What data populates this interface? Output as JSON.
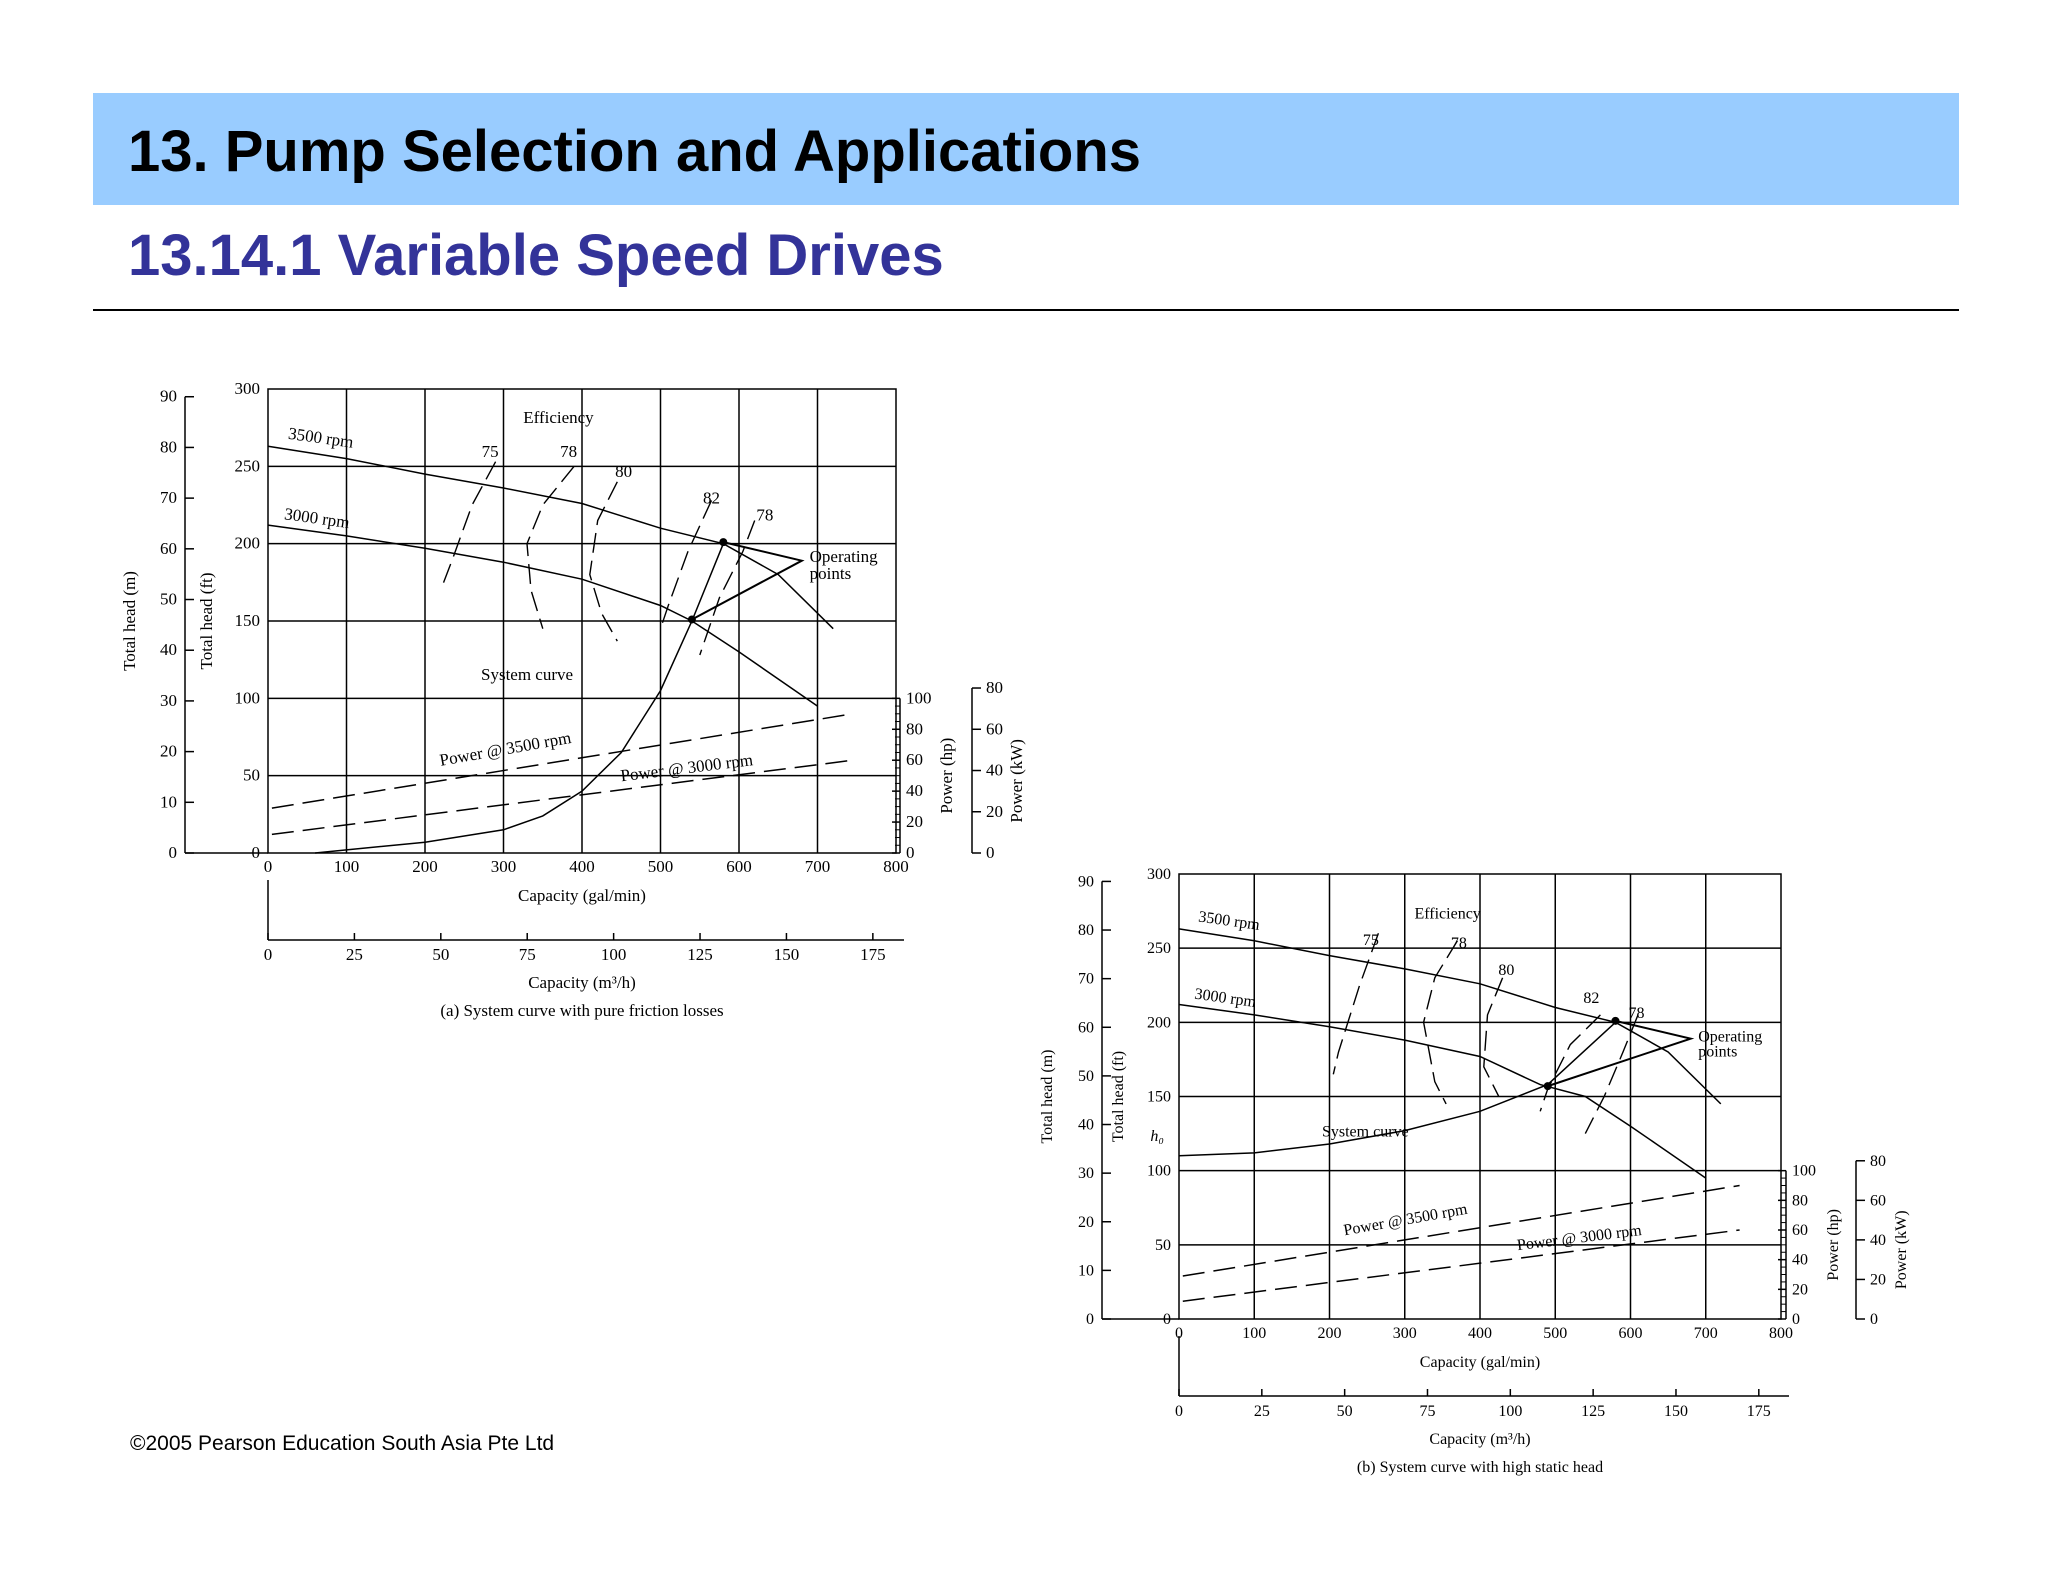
{
  "slide": {
    "title": "13. Pump  Selection and Applications",
    "subtitle": "13.14.1 Variable Speed Drives",
    "copyright": "©2005 Pearson Education South Asia Pte Ltd",
    "colors": {
      "header_band": "#99ccff",
      "subtitle": "#333399"
    }
  },
  "chart_data": [
    {
      "type": "line",
      "caption": "(a) System curve with pure friction losses",
      "xlabel": "Capacity (gal/min)",
      "x2label": "Capacity (m³/h)",
      "ylabel_ft": "Total head (ft)",
      "ylabel_m": "Total head (m)",
      "ylabel_hp": "Power (hp)",
      "ylabel_kw": "Power (kW)",
      "xlim": [
        0,
        800
      ],
      "ylim": [
        0,
        300
      ],
      "x_ticks": [
        "0",
        "100",
        "200",
        "300",
        "400",
        "500",
        "600",
        "700",
        "800"
      ],
      "x2_ticks": [
        "0",
        "25",
        "50",
        "75",
        "100",
        "125",
        "150",
        "175"
      ],
      "y_ft_ticks": [
        "0",
        "50",
        "100",
        "150",
        "200",
        "250",
        "300"
      ],
      "y_m_ticks": [
        "0",
        "10",
        "20",
        "30",
        "40",
        "50",
        "60",
        "70",
        "80",
        "90"
      ],
      "hp_ticks": [
        "0",
        "20",
        "40",
        "60",
        "80",
        "100"
      ],
      "kw_ticks": [
        "0",
        "20",
        "40",
        "60",
        "80"
      ],
      "grid": true,
      "series": [
        {
          "name": "3500 rpm",
          "style": "solid",
          "x": [
            0,
            100,
            200,
            300,
            400,
            500,
            580,
            650,
            720
          ],
          "y": [
            263,
            255,
            245,
            236,
            226,
            210,
            200,
            180,
            145
          ]
        },
        {
          "name": "3000 rpm",
          "style": "solid",
          "x": [
            0,
            100,
            200,
            300,
            400,
            500,
            540,
            600,
            700
          ],
          "y": [
            212,
            205,
            197,
            188,
            177,
            160,
            150,
            130,
            95
          ]
        },
        {
          "name": "System curve",
          "style": "solid",
          "x": [
            60,
            100,
            200,
            300,
            350,
            400,
            450,
            500,
            540,
            580
          ],
          "y": [
            0,
            2,
            7,
            15,
            24,
            40,
            65,
            105,
            150,
            200
          ]
        },
        {
          "name": "Power @ 3500 rpm",
          "style": "dashed",
          "x": [
            5,
            745
          ],
          "y": [
            29,
            90
          ]
        },
        {
          "name": "Power @ 3000 rpm",
          "style": "dashed",
          "x": [
            5,
            745
          ],
          "y": [
            12,
            60
          ]
        }
      ],
      "efficiency_labels": [
        "75",
        "78",
        "80",
        "82",
        "78"
      ],
      "annotations": [
        "Efficiency",
        "Operating",
        "points"
      ],
      "operating_points": [
        {
          "x": 580,
          "y": 201
        },
        {
          "x": 540,
          "y": 151
        }
      ]
    },
    {
      "type": "line",
      "caption": "(b) System curve with high static head",
      "xlabel": "Capacity (gal/min)",
      "x2label": "Capacity (m³/h)",
      "ylabel_ft": "Total head (ft)",
      "ylabel_m": "Total head (m)",
      "ylabel_hp": "Power (hp)",
      "ylabel_kw": "Power (kW)",
      "xlim": [
        0,
        800
      ],
      "ylim": [
        0,
        300
      ],
      "x_ticks": [
        "0",
        "100",
        "200",
        "300",
        "400",
        "500",
        "600",
        "700",
        "800"
      ],
      "x2_ticks": [
        "0",
        "25",
        "50",
        "75",
        "100",
        "125",
        "150",
        "175"
      ],
      "y_ft_ticks": [
        "0",
        "50",
        "100",
        "150",
        "200",
        "250",
        "300"
      ],
      "y_m_ticks": [
        "0",
        "10",
        "20",
        "30",
        "40",
        "50",
        "60",
        "70",
        "80",
        "90"
      ],
      "hp_ticks": [
        "0",
        "20",
        "40",
        "60",
        "80",
        "100"
      ],
      "kw_ticks": [
        "0",
        "20",
        "40",
        "60",
        "80"
      ],
      "grid": true,
      "static_head_label": "h₀",
      "series": [
        {
          "name": "3500 rpm",
          "style": "solid",
          "x": [
            0,
            100,
            200,
            300,
            400,
            500,
            580,
            650,
            720
          ],
          "y": [
            263,
            255,
            245,
            236,
            226,
            210,
            200,
            180,
            145
          ]
        },
        {
          "name": "3000 rpm",
          "style": "solid",
          "x": [
            0,
            100,
            200,
            300,
            400,
            480,
            540,
            600,
            700
          ],
          "y": [
            212,
            205,
            197,
            188,
            177,
            158,
            150,
            130,
            95
          ]
        },
        {
          "name": "System curve",
          "style": "solid",
          "x": [
            0,
            100,
            200,
            300,
            400,
            490,
            580
          ],
          "y": [
            110,
            112,
            118,
            127,
            140,
            158,
            200
          ]
        },
        {
          "name": "Power @ 3500 rpm",
          "style": "dashed",
          "x": [
            5,
            745
          ],
          "y": [
            29,
            90
          ]
        },
        {
          "name": "Power @ 3000 rpm",
          "style": "dashed",
          "x": [
            5,
            745
          ],
          "y": [
            12,
            60
          ]
        }
      ],
      "efficiency_labels": [
        "75",
        "78",
        "80",
        "82",
        "78"
      ],
      "annotations": [
        "Efficiency",
        "Operating",
        "points"
      ],
      "operating_points": [
        {
          "x": 580,
          "y": 201
        },
        {
          "x": 490,
          "y": 157
        }
      ]
    }
  ]
}
